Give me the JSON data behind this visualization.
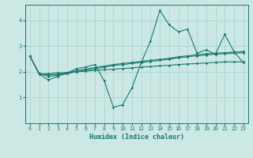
{
  "xlabel": "Humidex (Indice chaleur)",
  "background_color": "#cce8e5",
  "grid_color": "#a8d4d0",
  "line_color": "#1a7870",
  "xlim": [
    -0.5,
    23.5
  ],
  "ylim": [
    0.0,
    4.6
  ],
  "yticks": [
    1,
    2,
    3,
    4
  ],
  "xticks": [
    0,
    1,
    2,
    3,
    4,
    5,
    6,
    7,
    8,
    9,
    10,
    11,
    12,
    13,
    14,
    15,
    16,
    17,
    18,
    19,
    20,
    21,
    22,
    23
  ],
  "s_jagged": [
    2.6,
    1.9,
    1.68,
    1.82,
    1.95,
    2.12,
    2.18,
    2.28,
    1.65,
    0.62,
    0.72,
    1.38,
    2.35,
    3.2,
    4.38,
    3.82,
    3.55,
    3.65,
    2.72,
    2.85,
    2.68,
    3.45,
    2.78,
    2.35
  ],
  "s_flat": [
    2.6,
    1.92,
    1.92,
    1.95,
    1.97,
    2.0,
    2.02,
    2.05,
    2.08,
    2.1,
    2.12,
    2.15,
    2.18,
    2.2,
    2.23,
    2.25,
    2.28,
    2.3,
    2.32,
    2.34,
    2.36,
    2.38,
    2.38,
    2.38
  ],
  "s_med1": [
    2.6,
    1.92,
    1.88,
    1.9,
    1.96,
    2.04,
    2.1,
    2.16,
    2.22,
    2.28,
    2.32,
    2.36,
    2.4,
    2.44,
    2.48,
    2.52,
    2.58,
    2.62,
    2.66,
    2.7,
    2.72,
    2.74,
    2.76,
    2.78
  ],
  "s_med2": [
    2.6,
    1.92,
    1.82,
    1.86,
    1.92,
    2.0,
    2.06,
    2.12,
    2.18,
    2.24,
    2.28,
    2.32,
    2.36,
    2.4,
    2.44,
    2.48,
    2.54,
    2.58,
    2.62,
    2.65,
    2.68,
    2.7,
    2.72,
    2.74
  ]
}
